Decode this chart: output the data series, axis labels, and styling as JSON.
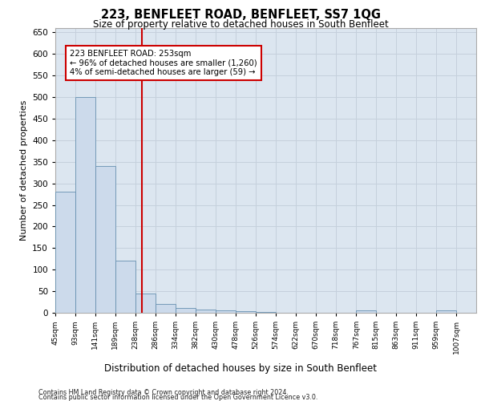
{
  "title": "223, BENFLEET ROAD, BENFLEET, SS7 1QG",
  "subtitle": "Size of property relative to detached houses in South Benfleet",
  "xlabel": "Distribution of detached houses by size in South Benfleet",
  "ylabel": "Number of detached properties",
  "footer_line1": "Contains HM Land Registry data © Crown copyright and database right 2024.",
  "footer_line2": "Contains public sector information licensed under the Open Government Licence v3.0.",
  "annotation_line1": "223 BENFLEET ROAD: 253sqm",
  "annotation_line2": "← 96% of detached houses are smaller (1,260)",
  "annotation_line3": "4% of semi-detached houses are larger (59) →",
  "vline_x": 253,
  "bin_starts": [
    45,
    93,
    141,
    189,
    238,
    286,
    334,
    382,
    430,
    478,
    526,
    574,
    622,
    670,
    718,
    767,
    815,
    863,
    911,
    959
  ],
  "bin_labels": [
    "45sqm",
    "93sqm",
    "141sqm",
    "189sqm",
    "238sqm",
    "286sqm",
    "334sqm",
    "382sqm",
    "430sqm",
    "478sqm",
    "526sqm",
    "574sqm",
    "622sqm",
    "670sqm",
    "718sqm",
    "767sqm",
    "815sqm",
    "863sqm",
    "911sqm",
    "959sqm",
    "1007sqm"
  ],
  "bar_heights": [
    280,
    500,
    340,
    120,
    45,
    20,
    12,
    8,
    5,
    3,
    1,
    0,
    0,
    0,
    0,
    5,
    0,
    0,
    0,
    5
  ],
  "bar_color": "#ccdaeb",
  "bar_edge_color": "#6690b0",
  "vline_color": "#cc0000",
  "annotation_box_edge": "#cc0000",
  "grid_color": "#c5d0dc",
  "axes_bg_color": "#dce6f0",
  "ylim": [
    0,
    660
  ],
  "yticks": [
    0,
    50,
    100,
    150,
    200,
    250,
    300,
    350,
    400,
    450,
    500,
    550,
    600,
    650
  ]
}
